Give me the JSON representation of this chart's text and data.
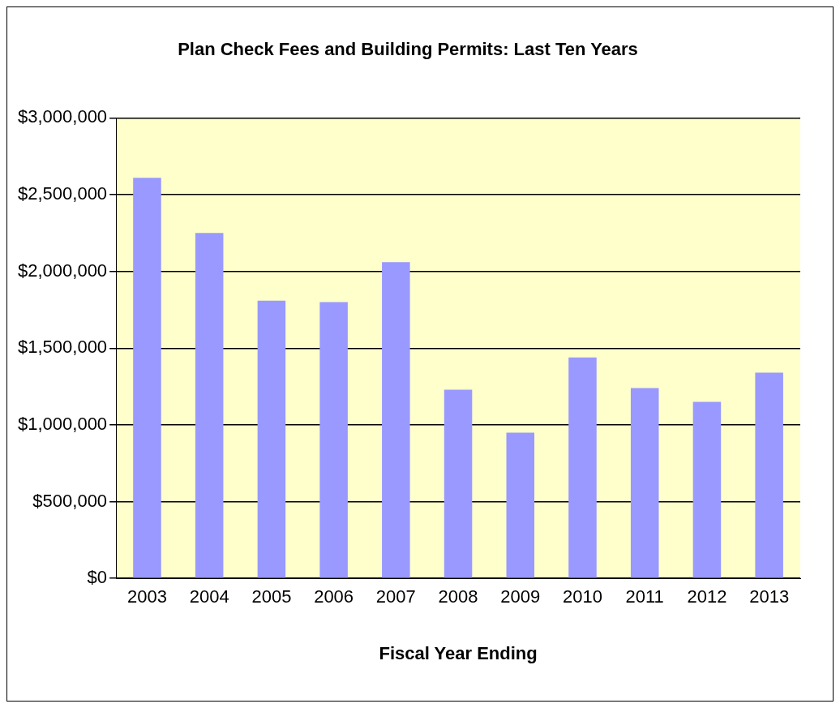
{
  "chart_data": {
    "type": "bar",
    "title": "Plan Check Fees and Building Permits: Last Ten Years",
    "xlabel": "Fiscal Year Ending",
    "categories": [
      "2003",
      "2004",
      "2005",
      "2006",
      "2007",
      "2008",
      "2009",
      "2010",
      "2011",
      "2012",
      "2013"
    ],
    "values": [
      2610000,
      2250000,
      1810000,
      1800000,
      2060000,
      1230000,
      950000,
      1440000,
      1240000,
      1150000,
      1340000
    ],
    "color": "#9999ff",
    "ylim": [
      0,
      3000000
    ],
    "yticks": [
      {
        "value": 0,
        "label": "$0"
      },
      {
        "value": 500000,
        "label": "$500,000"
      },
      {
        "value": 1000000,
        "label": "$1,000,000"
      },
      {
        "value": 1500000,
        "label": "$1,500,000"
      },
      {
        "value": 2000000,
        "label": "$2,000,000"
      },
      {
        "value": 2500000,
        "label": "$2,500,000"
      },
      {
        "value": 3000000,
        "label": "$3,000,000"
      }
    ],
    "grid": "y",
    "legend": false
  }
}
